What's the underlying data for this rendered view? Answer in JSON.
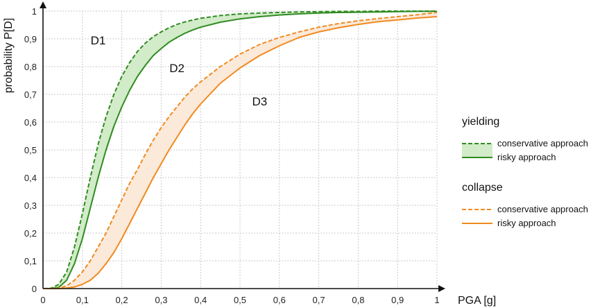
{
  "chart_data": {
    "type": "line",
    "title": "",
    "xlabel": "PGA [g]",
    "ylabel": "probability P[D]",
    "xlim": [
      0,
      1
    ],
    "ylim": [
      0,
      1
    ],
    "x_ticks": [
      "0",
      "0,1",
      "0,2",
      "0,3",
      "0,4",
      "0,5",
      "0,6",
      "0,7",
      "0,8",
      "0,9",
      "1"
    ],
    "y_ticks": [
      "0",
      "0,1",
      "0,2",
      "0,3",
      "0,4",
      "0,5",
      "0,6",
      "0,7",
      "0,8",
      "0,9",
      "1"
    ],
    "grid": true,
    "legend_position": "right",
    "region_labels": [
      {
        "text": "D1",
        "x": 0.14,
        "y": 0.88
      },
      {
        "text": "D2",
        "x": 0.34,
        "y": 0.78
      },
      {
        "text": "D3",
        "x": 0.55,
        "y": 0.66
      }
    ],
    "x": [
      0,
      0.02,
      0.04,
      0.06,
      0.08,
      0.1,
      0.12,
      0.14,
      0.16,
      0.18,
      0.2,
      0.22,
      0.24,
      0.26,
      0.28,
      0.3,
      0.32,
      0.34,
      0.36,
      0.38,
      0.4,
      0.45,
      0.5,
      0.55,
      0.6,
      0.65,
      0.7,
      0.75,
      0.8,
      0.85,
      0.9,
      0.95,
      1.0
    ],
    "groups": [
      {
        "name": "yielding",
        "color": "#2e8b20",
        "fill": "#d2ebc8",
        "series": [
          {
            "name": "conservative approach",
            "style": "dashed",
            "values": [
              0,
              0.001,
              0.015,
              0.06,
              0.15,
              0.27,
              0.4,
              0.52,
              0.62,
              0.7,
              0.765,
              0.815,
              0.855,
              0.885,
              0.908,
              0.925,
              0.94,
              0.952,
              0.961,
              0.968,
              0.974,
              0.984,
              0.99,
              0.993,
              0.995,
              0.997,
              0.998,
              0.999,
              0.999,
              1,
              1,
              1,
              1
            ]
          },
          {
            "name": "risky approach",
            "style": "solid",
            "values": [
              0,
              0,
              0.004,
              0.03,
              0.09,
              0.18,
              0.29,
              0.4,
              0.5,
              0.585,
              0.655,
              0.715,
              0.765,
              0.805,
              0.84,
              0.865,
              0.888,
              0.905,
              0.92,
              0.932,
              0.942,
              0.96,
              0.972,
              0.98,
              0.986,
              0.99,
              0.993,
              0.995,
              0.996,
              0.997,
              0.998,
              0.999,
              0.999
            ]
          }
        ]
      },
      {
        "name": "collapse",
        "color": "#f08a20",
        "fill": "#fbe9d9",
        "series": [
          {
            "name": "conservative approach",
            "style": "dashed",
            "values": [
              0,
              0,
              0.002,
              0.01,
              0.03,
              0.06,
              0.1,
              0.15,
              0.2,
              0.26,
              0.32,
              0.38,
              0.43,
              0.485,
              0.535,
              0.58,
              0.62,
              0.655,
              0.69,
              0.72,
              0.745,
              0.8,
              0.845,
              0.88,
              0.905,
              0.925,
              0.942,
              0.955,
              0.965,
              0.973,
              0.98,
              0.987,
              0.995
            ]
          },
          {
            "name": "risky approach",
            "style": "solid",
            "values": [
              0,
              0,
              0,
              0.002,
              0.006,
              0.015,
              0.03,
              0.055,
              0.09,
              0.13,
              0.18,
              0.235,
              0.29,
              0.345,
              0.4,
              0.45,
              0.5,
              0.545,
              0.59,
              0.63,
              0.665,
              0.74,
              0.795,
              0.84,
              0.875,
              0.905,
              0.925,
              0.94,
              0.952,
              0.962,
              0.968,
              0.975,
              0.98
            ]
          }
        ]
      }
    ]
  }
}
